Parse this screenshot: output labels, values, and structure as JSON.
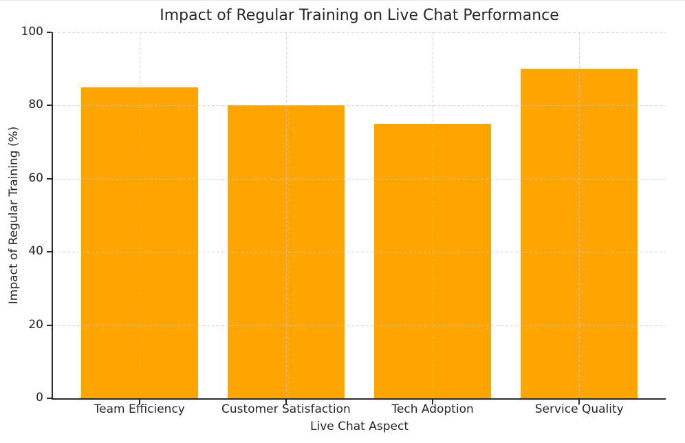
{
  "chart_data": {
    "type": "bar",
    "title": "Impact of Regular Training on Live Chat Performance",
    "xlabel": "Live Chat Aspect",
    "ylabel": "Impact of Regular Training (%)",
    "categories": [
      "Team Efficiency",
      "Customer Satisfaction",
      "Tech Adoption",
      "Service Quality"
    ],
    "values": [
      85,
      80,
      75,
      90
    ],
    "ylim": [
      0,
      100
    ],
    "yticks": [
      0,
      20,
      40,
      60,
      80,
      100
    ],
    "bar_color": "#FFA500",
    "grid": "dashed",
    "grid_color": "#c8c8c8",
    "axis_color": "#2b2b2b",
    "text_color": "#262626",
    "legend": "none",
    "bar_width_fraction": 0.8
  }
}
